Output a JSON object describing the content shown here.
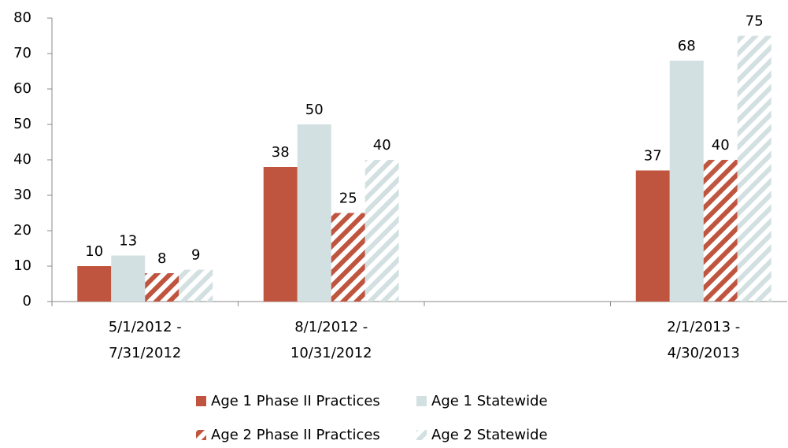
{
  "chart_data": {
    "type": "bar",
    "categories": [
      "5/1/2012 - 7/31/2012",
      "8/1/2012 - 10/31/2012",
      null,
      "2/1/2013 - 4/30/2013"
    ],
    "series": [
      {
        "name": "Age 1 Phase II Practices",
        "color": "#c0553f",
        "values": [
          10,
          38,
          null,
          37
        ]
      },
      {
        "name": "Age 1 Statewide",
        "color": "#d3e0e1",
        "values": [
          13,
          50,
          null,
          68
        ]
      },
      {
        "name": "Age 2 Phase II Practices",
        "color": "#c0553f",
        "pattern": "hatch",
        "values": [
          8,
          25,
          null,
          40
        ]
      },
      {
        "name": "Age 2 Statewide",
        "color": "#d3e0e1",
        "pattern": "hatch",
        "values": [
          9,
          40,
          null,
          75
        ]
      }
    ],
    "ylim": [
      0,
      80
    ],
    "yticks": [
      0,
      10,
      20,
      30,
      40,
      50,
      60,
      70,
      80
    ],
    "grid": false
  }
}
